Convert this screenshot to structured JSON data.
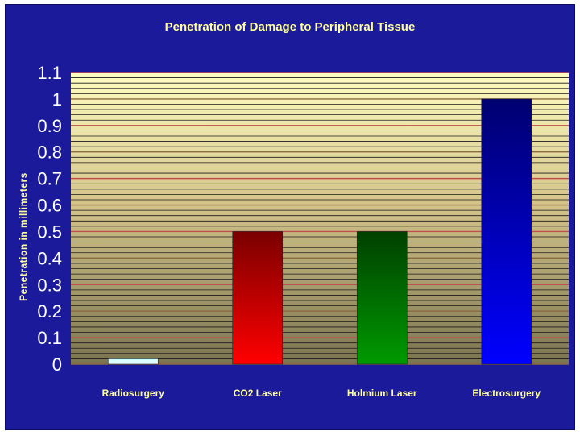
{
  "chart_data": {
    "type": "bar",
    "title": "Penetration of Damage to Peripheral Tissue",
    "xlabel": "",
    "ylabel": "Penetration in millimeters",
    "ylim": [
      0,
      1.1
    ],
    "yticks": [
      "0",
      "0.1",
      "0.2",
      "0.3",
      "0.4",
      "0.5",
      "0.6",
      "0.7",
      "0.8",
      "0.9",
      "1",
      "1.1"
    ],
    "categories": [
      "Radiosurgery",
      "CO2 Laser",
      "Holmium Laser",
      "Electrosurgery"
    ],
    "values": [
      0.02,
      0.5,
      0.5,
      1.0
    ],
    "bar_colors": [
      "#ccffff",
      "#ff0000",
      "#008000",
      "#0000ff"
    ],
    "grid": true,
    "legend": "none"
  }
}
